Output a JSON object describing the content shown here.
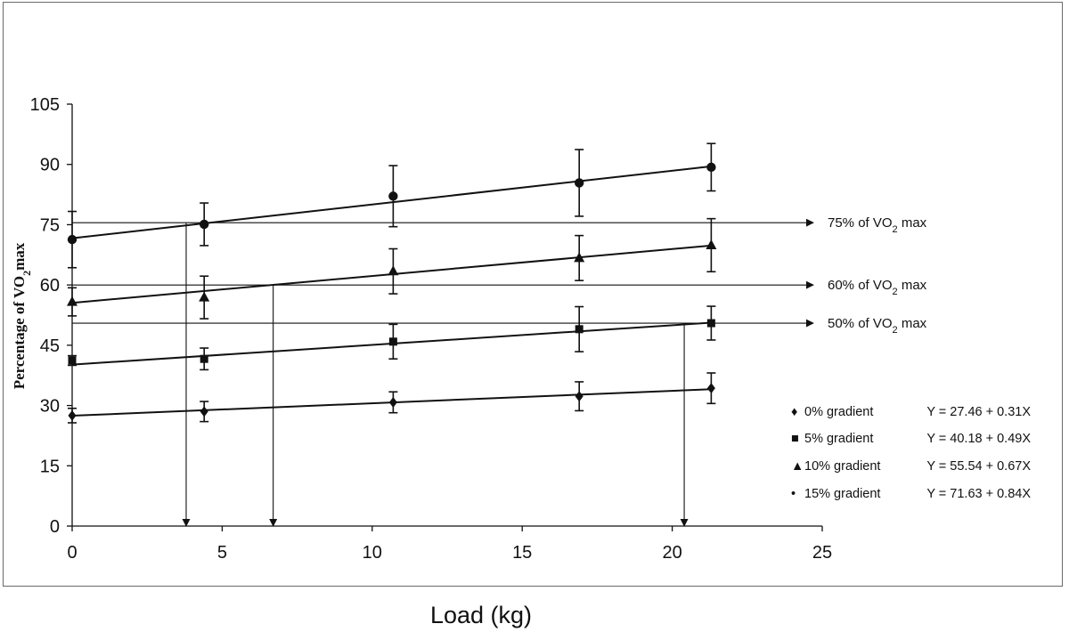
{
  "chart_data": {
    "type": "scatter",
    "title": "",
    "xlabel": "Load (kg)",
    "ylabel": "Percentage of VO2max",
    "xlim": [
      0,
      25
    ],
    "ylim": [
      0,
      105
    ],
    "x_ticks": [
      "0",
      "5",
      "10",
      "15",
      "20",
      "25"
    ],
    "y_ticks": [
      "0",
      "15",
      "30",
      "45",
      "60",
      "75",
      "90",
      "105"
    ],
    "grid": false,
    "series": [
      {
        "name": "0% gradient",
        "marker": "diamond",
        "equation": "Y = 27.46 + 0.31X",
        "intercept": 27.46,
        "slope": 0.31,
        "points": [
          {
            "x": 0,
            "y": 27.5,
            "err": 1.8
          },
          {
            "x": 4.4,
            "y": 28.5,
            "err": 2.5
          },
          {
            "x": 10.7,
            "y": 30.8,
            "err": 2.6
          },
          {
            "x": 16.9,
            "y": 32.3,
            "err": 3.6
          },
          {
            "x": 21.3,
            "y": 34.3,
            "err": 3.8
          }
        ]
      },
      {
        "name": "5% gradient",
        "marker": "square",
        "equation": "Y = 40.18 + 0.49X",
        "intercept": 40.18,
        "slope": 0.49,
        "points": [
          {
            "x": 0,
            "y": 41.2,
            "err": 1.2
          },
          {
            "x": 4.4,
            "y": 41.6,
            "err": 2.7
          },
          {
            "x": 10.7,
            "y": 45.9,
            "err": 4.3
          },
          {
            "x": 16.9,
            "y": 49.0,
            "err": 5.6
          },
          {
            "x": 21.3,
            "y": 50.5,
            "err": 4.2
          }
        ]
      },
      {
        "name": "10% gradient",
        "marker": "triangle",
        "equation": "Y = 55.54 + 0.67X",
        "intercept": 55.54,
        "slope": 0.67,
        "points": [
          {
            "x": 0,
            "y": 55.8,
            "err": 3.5
          },
          {
            "x": 4.4,
            "y": 56.9,
            "err": 5.3
          },
          {
            "x": 10.7,
            "y": 63.4,
            "err": 5.6
          },
          {
            "x": 16.9,
            "y": 66.7,
            "err": 5.6
          },
          {
            "x": 21.3,
            "y": 69.9,
            "err": 6.6
          }
        ]
      },
      {
        "name": "15% gradient",
        "marker": "circle",
        "equation": "Y = 71.63 + 0.84X",
        "intercept": 71.63,
        "slope": 0.84,
        "points": [
          {
            "x": 0,
            "y": 71.3,
            "err": 7.0
          },
          {
            "x": 4.4,
            "y": 75.1,
            "err": 5.3
          },
          {
            "x": 10.7,
            "y": 82.1,
            "err": 7.6
          },
          {
            "x": 16.9,
            "y": 85.4,
            "err": 8.3
          },
          {
            "x": 21.3,
            "y": 89.3,
            "err": 5.9
          }
        ]
      }
    ],
    "reference_lines": [
      {
        "y": 75.5,
        "label_prefix": "75% of VO",
        "label_sub": "2",
        "label_suffix": " max"
      },
      {
        "y": 60.0,
        "label_prefix": "60% of VO",
        "label_sub": "2",
        "label_suffix": " max"
      },
      {
        "y": 50.5,
        "label_prefix": "50% of VO",
        "label_sub": "2",
        "label_suffix": " max"
      }
    ],
    "drop_lines": [
      {
        "x": 3.8,
        "from_y": 75.5
      },
      {
        "x": 6.7,
        "from_y": 60.0
      },
      {
        "x": 20.4,
        "from_y": 50.5
      }
    ],
    "legend": [
      {
        "symbol": "♦",
        "name": "0% gradient",
        "equation": "Y = 27.46 + 0.31X"
      },
      {
        "symbol": "■",
        "name": "5% gradient",
        "equation": "Y = 40.18 + 0.49X"
      },
      {
        "symbol": "▲",
        "name": "10% gradient",
        "equation": "Y = 55.54 + 0.67X"
      },
      {
        "symbol": "•",
        "name": "15% gradient",
        "equation": "Y = 71.63 + 0.84X"
      }
    ]
  },
  "axis_labels": {
    "x_label": "Load (kg)",
    "y_label_prefix": "Percentage  of VO",
    "y_label_sub": "2",
    "y_label_suffix": "max"
  }
}
